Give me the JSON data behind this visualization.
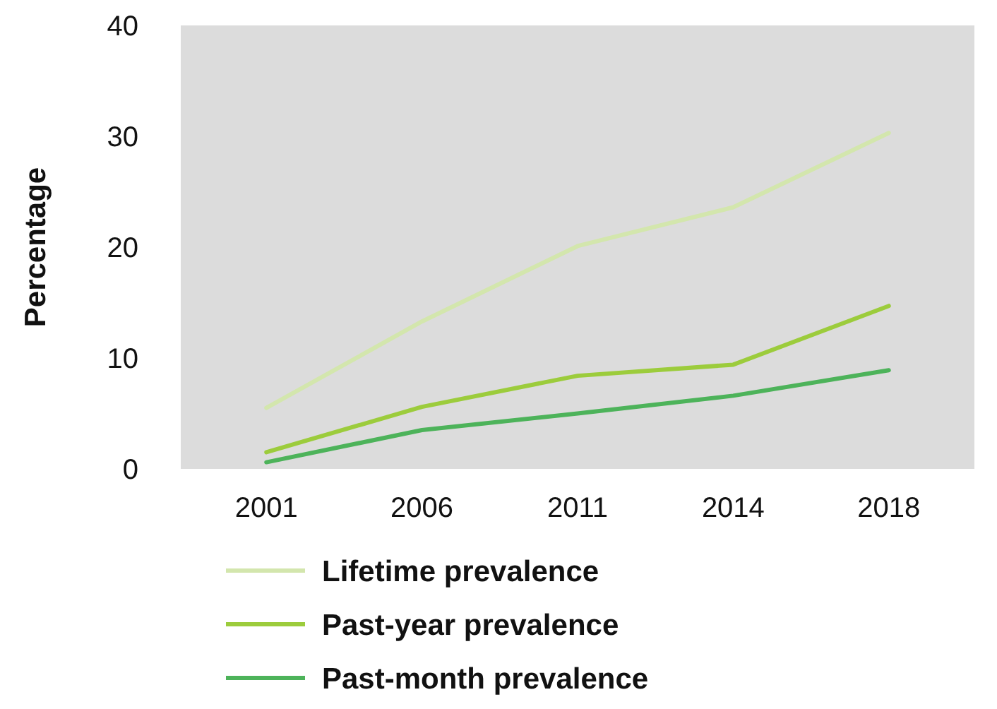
{
  "chart_data": {
    "type": "line",
    "ylabel": "Percentage",
    "categories": [
      "2001",
      "2006",
      "2011",
      "2014",
      "2018"
    ],
    "series": [
      {
        "name": "Lifetime prevalence",
        "color": "#d3e6ad",
        "values": [
          5.5,
          13.3,
          20.1,
          23.6,
          30.3
        ]
      },
      {
        "name": "Past-year prevalence",
        "color": "#9ccc3c",
        "values": [
          1.5,
          5.6,
          8.4,
          9.4,
          14.7
        ]
      },
      {
        "name": "Past-month prevalence",
        "color": "#4db35a",
        "values": [
          0.6,
          3.5,
          5.0,
          6.6,
          8.9
        ]
      }
    ],
    "ylim": [
      0,
      40
    ],
    "yticks": [
      0,
      10,
      20,
      30,
      40
    ],
    "legend": "bottom",
    "marker": "none",
    "line_style": "solid"
  }
}
